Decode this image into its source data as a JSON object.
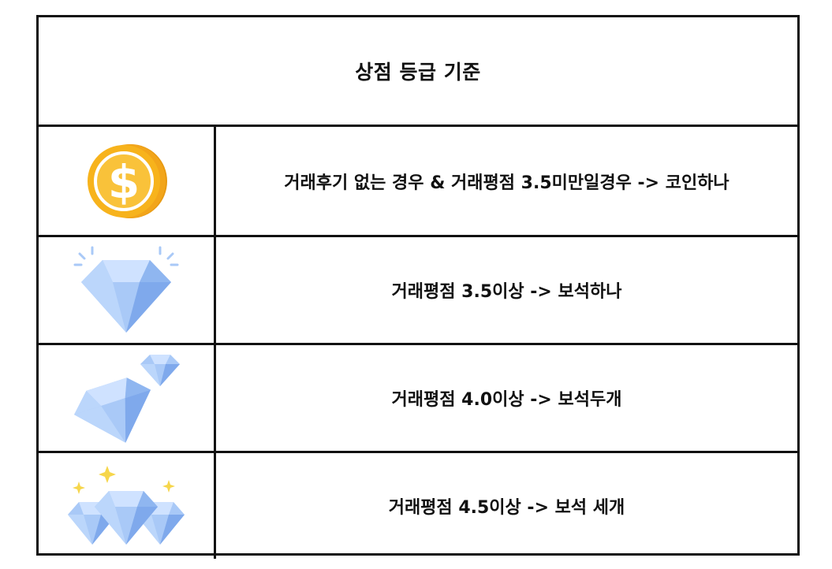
{
  "title": "상점 등급 기준",
  "colors": {
    "border": "#111111",
    "coin_gold": "#F7B31C",
    "coin_edge": "#E89A12",
    "diamond_light": "#CFE2FF",
    "diamond_mid": "#A9C9F7",
    "diamond_dark": "#7FA9EC",
    "sparkle": "#F6D64B"
  },
  "grades": [
    {
      "icon": "coin-icon",
      "text": "거래후기 없는 경우 & 거래평점 3.5미만일경우 -> 코인하나"
    },
    {
      "icon": "diamond-icon",
      "text": "거래평점 3.5이상 -> 보석하나"
    },
    {
      "icon": "two-diamonds-icon",
      "text": "거래평점 4.0이상 -> 보석두개"
    },
    {
      "icon": "three-diamonds-icon",
      "text": "거래평점 4.5이상 -> 보석 세개"
    }
  ]
}
